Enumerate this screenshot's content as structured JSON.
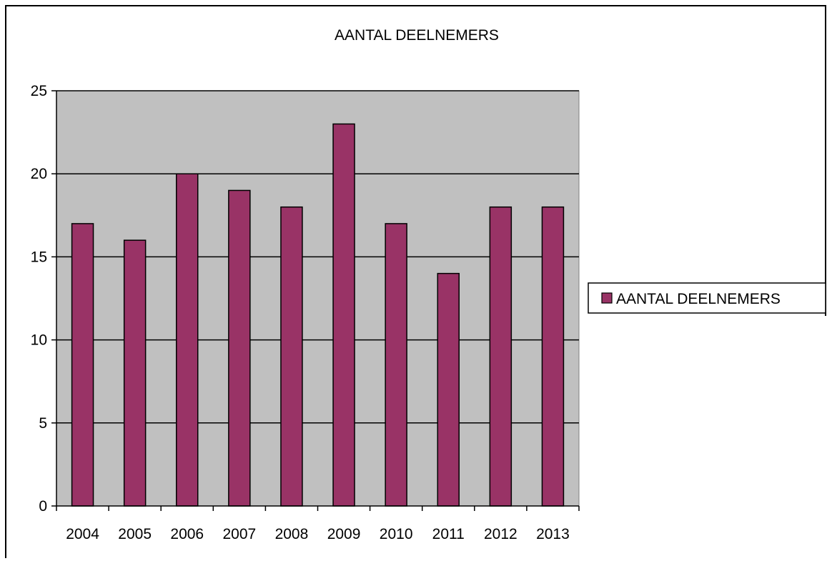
{
  "chart_data": {
    "type": "bar",
    "title": "AANTAL DEELNEMERS",
    "categories": [
      "2004",
      "2005",
      "2006",
      "2007",
      "2008",
      "2009",
      "2010",
      "2011",
      "2012",
      "2013"
    ],
    "series": [
      {
        "name": "AANTAL DEELNEMERS",
        "values": [
          17,
          16,
          20,
          19,
          18,
          23,
          17,
          14,
          18,
          18
        ],
        "color": "#993366"
      }
    ],
    "xlabel": "",
    "ylabel": "",
    "ylim": [
      0,
      25
    ],
    "yticks": [
      "0",
      "5",
      "10",
      "15",
      "20",
      "25"
    ],
    "grid": true,
    "legend_position": "right",
    "plot_background": "#C0C0C0"
  }
}
